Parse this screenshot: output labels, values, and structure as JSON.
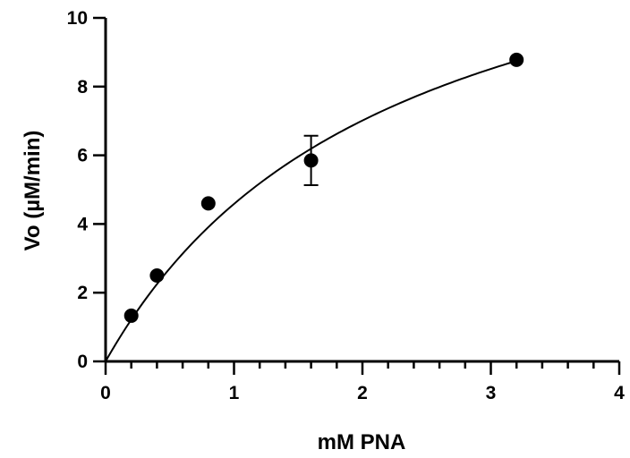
{
  "chart_data": {
    "type": "scatter",
    "xlabel": "mM PNA",
    "ylabel": "Vo (µM/min)",
    "xlim": [
      0,
      4
    ],
    "ylim": [
      0,
      10
    ],
    "x_ticks": [
      0,
      1,
      2,
      3,
      4
    ],
    "y_ticks": [
      0,
      2,
      4,
      6,
      8,
      10
    ],
    "x_tick_labels": [
      "0",
      "1",
      "2",
      "3",
      "4"
    ],
    "y_tick_labels": [
      "0",
      "2",
      "4",
      "6",
      "8",
      "10"
    ],
    "grid": false,
    "legend": "none",
    "series": [
      {
        "x": [
          0.2,
          0.4,
          0.8,
          1.6,
          3.2
        ],
        "y": [
          1.33,
          2.5,
          4.6,
          5.85,
          8.78
        ],
        "error": [
          0,
          0,
          0,
          0.72,
          0
        ],
        "marker": "filled-circle",
        "color": "#000000"
      }
    ],
    "fit": {
      "model": "Michaelis-Menten",
      "vmax": 14.9,
      "km": 2.25,
      "x_range": [
        0,
        3.2
      ],
      "color": "#000000"
    }
  }
}
